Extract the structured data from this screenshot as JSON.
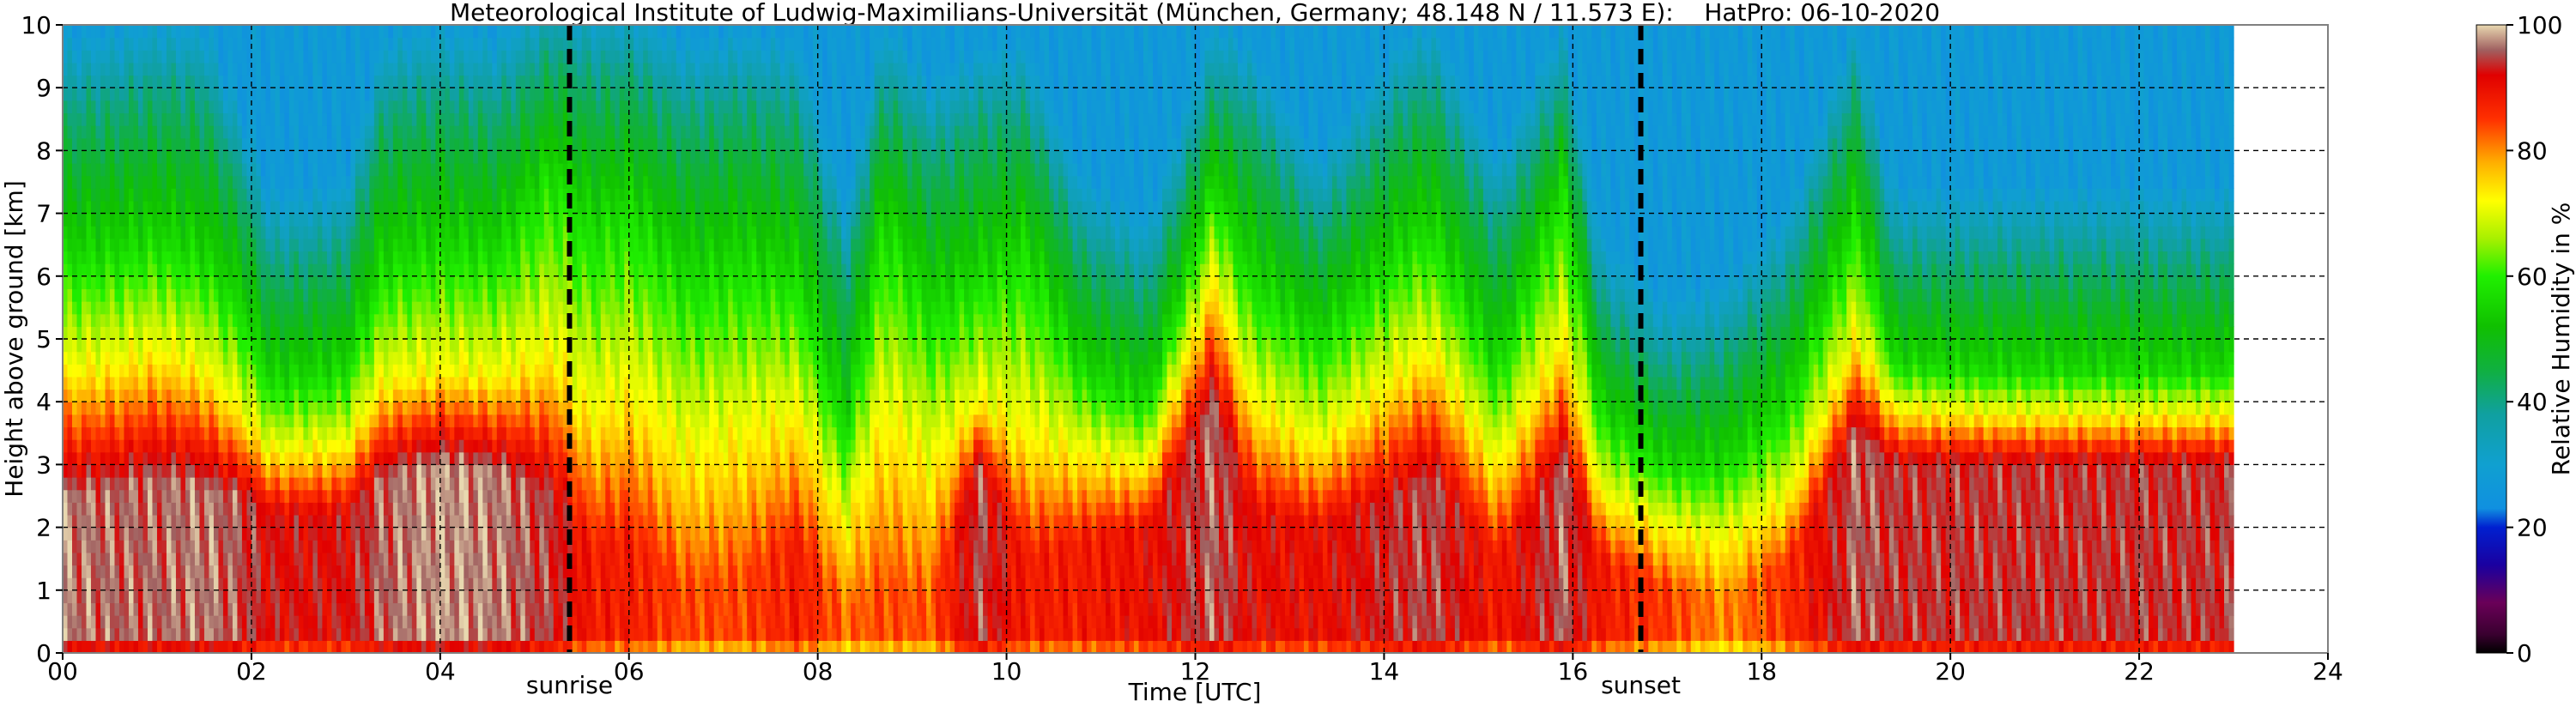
{
  "chart_data": {
    "type": "heatmap",
    "title": "Meteorological Institute of Ludwig-Maximilians-Universität (München, Germany; 48.148 N / 11.573 E):    HatPro: 06-10-2020",
    "xlabel": "Time [UTC]",
    "ylabel": "Height above ground [km]",
    "xlim": [
      0,
      24
    ],
    "ylim": [
      0,
      10
    ],
    "x_ticks": [
      "00",
      "02",
      "04",
      "06",
      "08",
      "10",
      "12",
      "14",
      "16",
      "18",
      "20",
      "22",
      "24"
    ],
    "y_ticks": [
      "0",
      "1",
      "2",
      "3",
      "4",
      "5",
      "6",
      "7",
      "8",
      "9",
      "10"
    ],
    "grid": true,
    "data_end_time": 23.0,
    "colorbar": {
      "label": "Relative Humidity in %",
      "range": [
        0,
        100
      ],
      "ticks": [
        "0",
        "20",
        "40",
        "60",
        "80",
        "100"
      ],
      "stops": [
        {
          "v": 0,
          "color": "#000000"
        },
        {
          "v": 3,
          "color": "#3a0030"
        },
        {
          "v": 8,
          "color": "#6a0058"
        },
        {
          "v": 14,
          "color": "#1a00a0"
        },
        {
          "v": 20,
          "color": "#0020d0"
        },
        {
          "v": 23,
          "color": "#1090e0"
        },
        {
          "v": 30,
          "color": "#10a0d0"
        },
        {
          "v": 38,
          "color": "#10a0a0"
        },
        {
          "v": 45,
          "color": "#10b040"
        },
        {
          "v": 52,
          "color": "#10c000"
        },
        {
          "v": 60,
          "color": "#20f000"
        },
        {
          "v": 66,
          "color": "#a8f000"
        },
        {
          "v": 72,
          "color": "#ffff00"
        },
        {
          "v": 78,
          "color": "#ffb000"
        },
        {
          "v": 85,
          "color": "#ff3000"
        },
        {
          "v": 92,
          "color": "#e00000"
        },
        {
          "v": 96,
          "color": "#a06060"
        },
        {
          "v": 100,
          "color": "#e8d8b0"
        }
      ]
    },
    "annotations": [
      {
        "text": "sunrise",
        "x": 5.37
      },
      {
        "text": "sunset",
        "x": 16.72
      }
    ],
    "profile_columns": [
      {
        "t": 0.0,
        "h": [
          2.5,
          4.5,
          6.3,
          8.7
        ],
        "sat": 97
      },
      {
        "t": 0.5,
        "h": [
          2.6,
          4.6,
          6.4,
          8.8
        ],
        "sat": 96
      },
      {
        "t": 1.0,
        "h": [
          2.8,
          4.8,
          6.6,
          9.0
        ],
        "sat": 96
      },
      {
        "t": 1.5,
        "h": [
          2.6,
          4.5,
          6.3,
          8.9
        ],
        "sat": 97
      },
      {
        "t": 1.9,
        "h": [
          2.5,
          3.8,
          5.5,
          7.5
        ],
        "sat": 95
      },
      {
        "t": 2.2,
        "h": [
          2.2,
          3.2,
          4.3,
          6.2
        ],
        "sat": 92
      },
      {
        "t": 3.0,
        "h": [
          2.2,
          3.3,
          4.5,
          6.4
        ],
        "sat": 92
      },
      {
        "t": 3.4,
        "h": [
          2.8,
          4.3,
          6.2,
          8.7
        ],
        "sat": 96
      },
      {
        "t": 4.0,
        "h": [
          3.0,
          4.5,
          6.5,
          8.9
        ],
        "sat": 98
      },
      {
        "t": 4.6,
        "h": [
          2.9,
          4.4,
          6.4,
          8.7
        ],
        "sat": 97
      },
      {
        "t": 5.2,
        "h": [
          2.5,
          4.8,
          7.8,
          9.6
        ],
        "sat": 94
      },
      {
        "t": 5.6,
        "h": [
          1.6,
          3.8,
          6.8,
          9.2
        ],
        "sat": 88
      },
      {
        "t": 6.0,
        "h": [
          1.8,
          4.2,
          7.2,
          9.3
        ],
        "sat": 88
      },
      {
        "t": 6.6,
        "h": [
          1.0,
          3.2,
          6.0,
          8.6
        ],
        "sat": 84
      },
      {
        "t": 7.2,
        "h": [
          1.2,
          3.5,
          6.3,
          8.8
        ],
        "sat": 84
      },
      {
        "t": 7.8,
        "h": [
          1.8,
          3.8,
          6.0,
          8.6
        ],
        "sat": 88
      },
      {
        "t": 8.3,
        "h": [
          0.6,
          2.0,
          3.5,
          6.0
        ],
        "sat": 82
      },
      {
        "t": 8.7,
        "h": [
          1.0,
          3.8,
          7.0,
          9.0
        ],
        "sat": 84
      },
      {
        "t": 9.2,
        "h": [
          0.8,
          3.0,
          5.5,
          8.0
        ],
        "sat": 83
      },
      {
        "t": 9.7,
        "h": [
          3.0,
          4.0,
          6.0,
          8.5
        ],
        "sat": 95
      },
      {
        "t": 10.2,
        "h": [
          1.5,
          3.5,
          6.5,
          8.6
        ],
        "sat": 88
      },
      {
        "t": 10.8,
        "h": [
          1.8,
          3.2,
          4.5,
          6.5
        ],
        "sat": 88
      },
      {
        "t": 11.5,
        "h": [
          2.0,
          3.0,
          4.0,
          5.8
        ],
        "sat": 90
      },
      {
        "t": 12.2,
        "h": [
          4.0,
          6.0,
          7.5,
          9.0
        ],
        "sat": 96
      },
      {
        "t": 12.6,
        "h": [
          2.2,
          4.0,
          6.0,
          8.5
        ],
        "sat": 91
      },
      {
        "t": 13.3,
        "h": [
          2.0,
          3.3,
          5.0,
          6.8
        ],
        "sat": 90
      },
      {
        "t": 14.2,
        "h": [
          2.5,
          4.5,
          6.5,
          8.7
        ],
        "sat": 94
      },
      {
        "t": 14.5,
        "h": [
          2.8,
          4.8,
          6.8,
          9.0
        ],
        "sat": 95
      },
      {
        "t": 15.2,
        "h": [
          1.5,
          3.0,
          4.5,
          6.8
        ],
        "sat": 88
      },
      {
        "t": 15.9,
        "h": [
          3.0,
          5.0,
          7.5,
          9.0
        ],
        "sat": 96
      },
      {
        "t": 16.3,
        "h": [
          1.5,
          2.5,
          3.8,
          5.5
        ],
        "sat": 88
      },
      {
        "t": 17.0,
        "h": [
          1.0,
          2.0,
          3.0,
          4.5
        ],
        "sat": 85
      },
      {
        "t": 17.6,
        "h": [
          0.8,
          1.8,
          3.0,
          4.8
        ],
        "sat": 80
      },
      {
        "t": 18.3,
        "h": [
          1.5,
          2.5,
          4.0,
          6.0
        ],
        "sat": 86
      },
      {
        "t": 19.0,
        "h": [
          3.5,
          5.0,
          7.0,
          9.0
        ],
        "sat": 96
      },
      {
        "t": 19.4,
        "h": [
          3.0,
          3.9,
          4.6,
          6.3
        ],
        "sat": 94
      },
      {
        "t": 20.5,
        "h": [
          3.0,
          3.8,
          4.5,
          6.3
        ],
        "sat": 94
      },
      {
        "t": 23.0,
        "h": [
          3.0,
          3.8,
          4.5,
          6.3
        ],
        "sat": 94
      }
    ]
  }
}
